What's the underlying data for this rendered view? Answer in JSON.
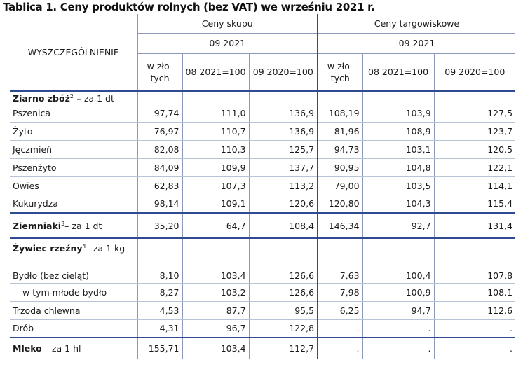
{
  "title": "Tablica 1. Ceny produktów rolnych (bez VAT) we wrześniu 2021 r.",
  "header": {
    "stub": "WYSZCZEGÓLNIENIE",
    "group1": "Ceny skupu",
    "group2": "Ceny targowiskowe",
    "period1": "09 2021",
    "period2": "09 2021",
    "col_zl_line1": "w zło-",
    "col_zl_line2": "tych",
    "col_mm1": "08 2021=100",
    "col_yy1": "09 2020=100",
    "col_zl2_line1": "w zło-",
    "col_zl2_line2": "tych",
    "col_mm2": "08  2021=100",
    "col_yy2": "09 2020=100"
  },
  "section_grain": {
    "name": "Ziarno zbóż",
    "sup": "2",
    "unit": " – za 1 dt"
  },
  "rows": [
    {
      "label": "Pszenica",
      "v": [
        "97,74",
        "111,0",
        "136,9",
        "108,19",
        "103,9",
        "127,5"
      ]
    },
    {
      "label": "Żyto",
      "v": [
        "76,97",
        "110,7",
        "136,9",
        "81,96",
        "108,9",
        "123,7"
      ]
    },
    {
      "label": "Jęczmień",
      "v": [
        "82,08",
        "110,3",
        "125,7",
        "94,73",
        "103,1",
        "120,5"
      ]
    },
    {
      "label": "Pszenżyto",
      "v": [
        "84,09",
        "109,9",
        "137,7",
        "90,95",
        "104,8",
        "122,1"
      ]
    },
    {
      "label": "Owies",
      "v": [
        "62,83",
        "107,3",
        "113,2",
        "79,00",
        "103,5",
        "114,1"
      ]
    },
    {
      "label": "Kukurydza",
      "v": [
        "98,14",
        "109,1",
        "120,6",
        "120,80",
        "104,3",
        "115,4"
      ]
    }
  ],
  "potatoes": {
    "name": "Ziemniaki",
    "sup": "3",
    "unit": "– za 1 dt",
    "v": [
      "35,20",
      "64,7",
      "108,4",
      "146,34",
      "92,7",
      "131,4"
    ]
  },
  "section_livestock": {
    "name": "Żywiec rzeźny",
    "sup": "4",
    "unit": "– za 1 kg"
  },
  "livestock": [
    {
      "label": "Bydło (bez cieląt)",
      "v": [
        "8,10",
        "103,4",
        "126,6",
        "7,63",
        "100,4",
        "107,8"
      ]
    },
    {
      "label": "w tym młode bydło",
      "v": [
        "8,27",
        "103,2",
        "126,6",
        "7,98",
        "100,9",
        "108,1"
      ]
    },
    {
      "label": "Trzoda chlewna",
      "v": [
        "4,53",
        "87,7",
        "95,5",
        "6,25",
        "94,7",
        "112,6"
      ]
    },
    {
      "label": "Drób",
      "v": [
        "4,31",
        "96,7",
        "122,8",
        ".",
        ".",
        "."
      ]
    }
  ],
  "milk": {
    "name": "Mleko",
    "unit": " – za 1 hl",
    "v": [
      "155,71",
      "103,4",
      "112,7",
      ".",
      ".",
      "."
    ]
  }
}
